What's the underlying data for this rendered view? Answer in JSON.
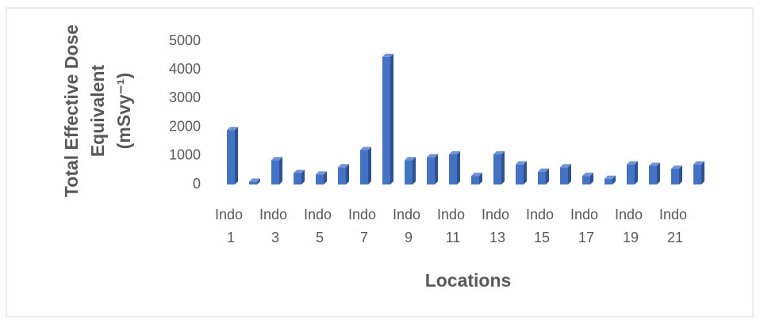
{
  "chart_data": {
    "type": "bar",
    "ylabel": [
      "Total Effective Dose",
      "Equivalent",
      "(mSvy⁻¹)"
    ],
    "xlabel": "Locations",
    "categories": [
      "Indo 1",
      null,
      "Indo 3",
      null,
      "Indo 5",
      null,
      "Indo 7",
      null,
      "Indo 9",
      null,
      "Indo 11",
      null,
      "Indo 13",
      null,
      "Indo 15",
      null,
      "Indo 17",
      null,
      "Indo 19",
      null,
      "Indo 21",
      null
    ],
    "values": [
      1900,
      100,
      850,
      400,
      350,
      600,
      1200,
      4450,
      850,
      950,
      1050,
      300,
      1050,
      700,
      450,
      600,
      300,
      200,
      700,
      650,
      550,
      700
    ],
    "color": "#4472c4",
    "ylim": [
      0,
      5000
    ],
    "yticks": [
      0,
      1000,
      2000,
      3000,
      4000,
      5000
    ],
    "grid": false
  }
}
